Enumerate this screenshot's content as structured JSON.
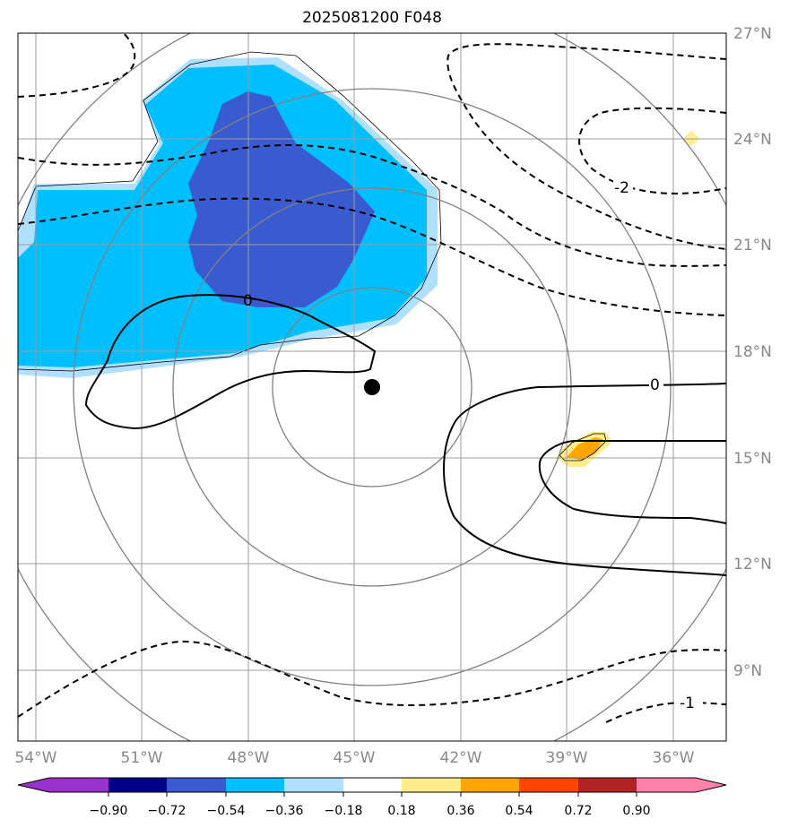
{
  "title": "2025081200 F048",
  "map": {
    "lat_labels": [
      "27°N",
      "24°N",
      "21°N",
      "18°N",
      "15°N",
      "12°N",
      "9°N"
    ],
    "lon_labels": [
      "54°W",
      "51°W",
      "48°W",
      "45°W",
      "42°W",
      "39°W",
      "36°W"
    ],
    "contour_labels": [
      "0",
      "0",
      "-2",
      "-1"
    ],
    "center_marker": "storm-center",
    "colors": {
      "grid": "#9e9e9e",
      "rings": "#808080",
      "contour": "#000000",
      "fill_dark_blue": "#3a5bd0",
      "fill_blue": "#00bfff",
      "fill_light_blue": "#b0e0ff",
      "fill_yellow": "#ffec8b",
      "fill_orange": "#ffa500"
    }
  },
  "colorbar": {
    "tick_labels": [
      "−0.90",
      "−0.72",
      "−0.54",
      "−0.36",
      "−0.18",
      "0.18",
      "0.36",
      "0.54",
      "0.72",
      "0.90"
    ],
    "colors": [
      "#9932cc",
      "#00008b",
      "#3a5bd0",
      "#00bfff",
      "#b0e0ff",
      "#ffffff",
      "#ffec8b",
      "#ffa500",
      "#ff4500",
      "#b22222",
      "#ff82ab"
    ]
  }
}
